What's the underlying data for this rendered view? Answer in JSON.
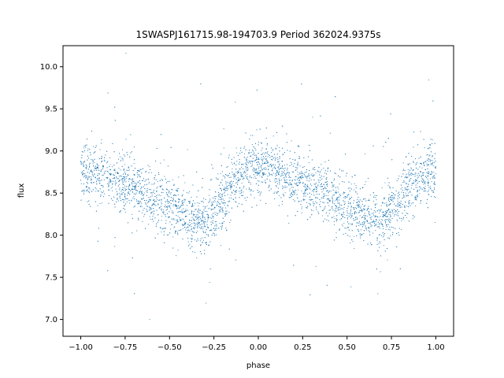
{
  "chart_data": {
    "type": "scatter",
    "title": "1SWASPJ161715.98-194703.9 Period 362024.9375s",
    "xlabel": "phase",
    "ylabel": "flux",
    "xlim": [
      -1.1,
      1.1
    ],
    "ylim": [
      6.8,
      10.25
    ],
    "x_ticks": [
      -1.0,
      -0.75,
      -0.5,
      -0.25,
      0.0,
      0.25,
      0.5,
      0.75,
      1.0
    ],
    "x_tick_labels": [
      "−1.00",
      "−0.75",
      "−0.50",
      "−0.25",
      "0.00",
      "0.25",
      "0.50",
      "0.75",
      "1.00"
    ],
    "y_ticks": [
      7.0,
      7.5,
      8.0,
      8.5,
      9.0,
      9.5,
      10.0
    ],
    "y_tick_labels": [
      "7.0",
      "7.5",
      "8.0",
      "8.5",
      "9.0",
      "9.5",
      "10.0"
    ],
    "grid": false,
    "legend": "none",
    "marker_color": "#1f77b4",
    "x_range": [
      -1.0,
      1.0
    ],
    "series": [
      {
        "x": [
          -1.0,
          -0.9,
          -0.8,
          -0.7,
          -0.6,
          -0.5,
          -0.4,
          -0.3,
          -0.2,
          -0.1,
          0.0,
          0.1,
          0.2,
          0.3,
          0.4,
          0.5,
          0.6,
          0.7,
          0.8,
          0.9,
          1.0
        ],
        "y": [
          8.75,
          8.72,
          8.65,
          8.57,
          8.47,
          8.35,
          8.22,
          8.12,
          8.45,
          8.72,
          8.85,
          8.75,
          8.65,
          8.57,
          8.47,
          8.35,
          8.22,
          8.15,
          8.45,
          8.65,
          8.78
        ]
      }
    ]
  }
}
